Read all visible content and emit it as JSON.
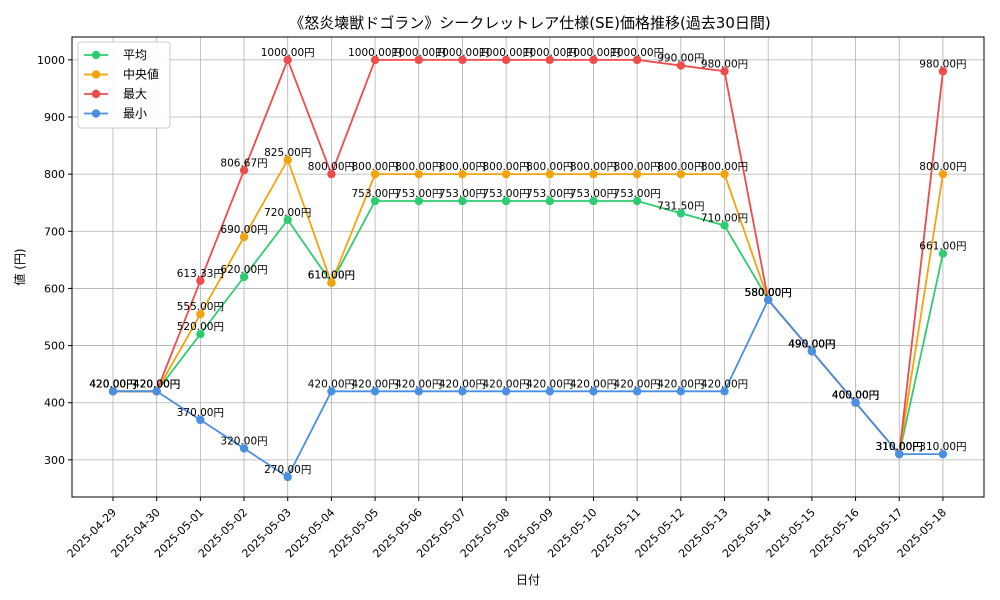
{
  "chart_data": {
    "type": "line",
    "title": "《怒炎壊獣ドゴラン》シークレットレア仕様(SE)価格推移(過去30日間)",
    "xlabel": "日付",
    "ylabel": "値 (円)",
    "ylim": [
      235,
      1040
    ],
    "yticks": [
      300,
      400,
      500,
      600,
      700,
      800,
      900,
      1000
    ],
    "grid": true,
    "legend_position": "top-left",
    "value_suffix": "円",
    "categories": [
      "2025-04-29",
      "2025-04-30",
      "2025-05-01",
      "2025-05-02",
      "2025-05-03",
      "2025-05-04",
      "2025-05-05",
      "2025-05-06",
      "2025-05-07",
      "2025-05-08",
      "2025-05-09",
      "2025-05-10",
      "2025-05-11",
      "2025-05-12",
      "2025-05-13",
      "2025-05-14",
      "2025-05-15",
      "2025-05-16",
      "2025-05-17",
      "2025-05-18"
    ],
    "series": [
      {
        "name": "平均",
        "color": "#2ecc71",
        "values": [
          420,
          420,
          520,
          620,
          720,
          610,
          753,
          753,
          753,
          753,
          753,
          753,
          753,
          731.5,
          710,
          580,
          490,
          400,
          310,
          661
        ]
      },
      {
        "name": "中央値",
        "color": "#f5a30a",
        "values": [
          420,
          420,
          555,
          690,
          825,
          610,
          800,
          800,
          800,
          800,
          800,
          800,
          800,
          800,
          800,
          580,
          490,
          400,
          310,
          800
        ]
      },
      {
        "name": "最大",
        "color": "#ef4b4b",
        "values": [
          420,
          420,
          613.33,
          806.67,
          1000,
          800,
          1000,
          1000,
          1000,
          1000,
          1000,
          1000,
          1000,
          990,
          980,
          580,
          490,
          400,
          310,
          980
        ]
      },
      {
        "name": "最小",
        "color": "#4a90e2",
        "values": [
          420,
          420,
          370,
          320,
          270,
          420,
          420,
          420,
          420,
          420,
          420,
          420,
          420,
          420,
          420,
          580,
          490,
          400,
          310,
          310
        ]
      }
    ]
  }
}
